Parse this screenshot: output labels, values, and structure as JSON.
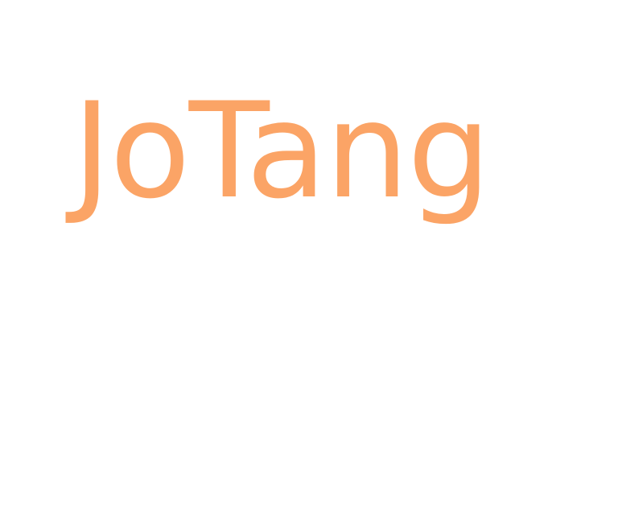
{
  "brand": {
    "wordmark": "JoTang",
    "color": "#fba466"
  },
  "page": {
    "background": "#ffffff"
  }
}
